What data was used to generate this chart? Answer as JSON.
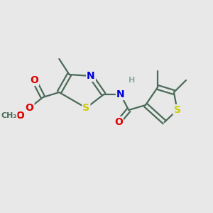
{
  "background_color": "#e8e8e8",
  "bond_color": "#4a6b58",
  "bond_width": 1.6,
  "dbo": 0.012,
  "font_size": 10,
  "small_font": 8,
  "colors": {
    "S": "#cccc00",
    "N": "#0000dd",
    "O": "#dd0000",
    "H": "#88aaaa",
    "C": "#4a6b58"
  }
}
